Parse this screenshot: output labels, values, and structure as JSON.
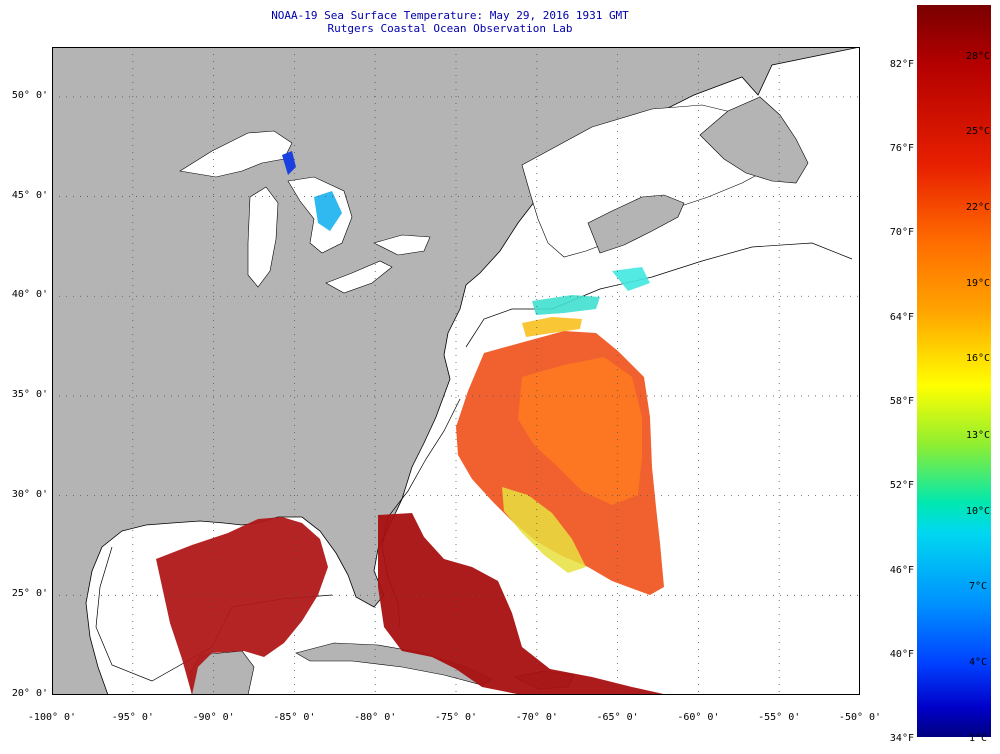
{
  "title": {
    "line1": "NOAA-19 Sea Surface Temperature:  May 29, 2016 1931 GMT",
    "line2": "Rutgers Coastal Ocean Observation Lab"
  },
  "map": {
    "lon_range": [
      -100,
      -50
    ],
    "lat_range": [
      20,
      52.5
    ],
    "lat_labels": [
      {
        "lat": 50,
        "text": "50° 0'"
      },
      {
        "lat": 45,
        "text": "45° 0'"
      },
      {
        "lat": 40,
        "text": "40° 0'"
      },
      {
        "lat": 35,
        "text": "35° 0'"
      },
      {
        "lat": 30,
        "text": "30° 0'"
      },
      {
        "lat": 25,
        "text": "25° 0'"
      },
      {
        "lat": 20,
        "text": "20° 0'"
      }
    ],
    "lon_labels": [
      {
        "lon": -100,
        "text": "-100° 0'"
      },
      {
        "lon": -95,
        "text": "-95° 0'"
      },
      {
        "lon": -90,
        "text": "-90° 0'"
      },
      {
        "lon": -85,
        "text": "-85° 0'"
      },
      {
        "lon": -80,
        "text": "-80° 0'"
      },
      {
        "lon": -75,
        "text": "-75° 0'"
      },
      {
        "lon": -70,
        "text": "-70° 0'"
      },
      {
        "lon": -65,
        "text": "-65° 0'"
      },
      {
        "lon": -60,
        "text": "-60° 0'"
      },
      {
        "lon": -55,
        "text": "-55° 0'"
      },
      {
        "lon": -50,
        "text": "-50° 0'"
      }
    ],
    "colors": {
      "land": "#b4b4b4",
      "ocean": "#ffffff",
      "grid": "#555555"
    }
  },
  "colorbar": {
    "fahrenheit": [
      "82°F",
      "76°F",
      "70°F",
      "64°F",
      "58°F",
      "52°F",
      "46°F",
      "40°F",
      "34°F"
    ],
    "celsius": [
      "28°C",
      "25°C",
      "22°C",
      "19°C",
      "16°C",
      "13°C",
      "10°C",
      "7°C",
      "4°C",
      "1°C"
    ]
  }
}
